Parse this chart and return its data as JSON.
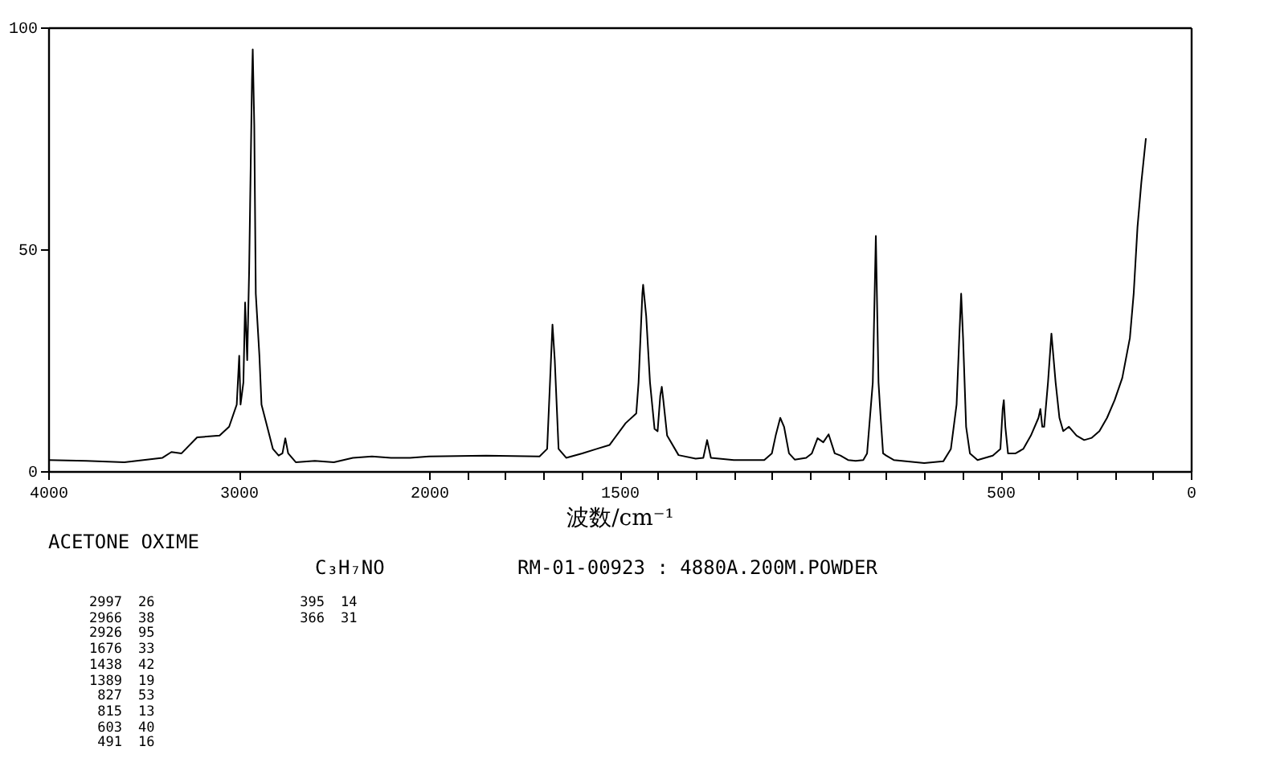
{
  "chart_data": [
    {
      "type": "line",
      "x": [
        4000,
        3800,
        3600,
        3400,
        3353,
        3300,
        3218,
        3100,
        3050,
        3010,
        2997,
        2990,
        2975,
        2966,
        2955,
        2945,
        2930,
        2926,
        2918,
        2910,
        2891,
        2880,
        2850,
        2820,
        2790,
        2770,
        2755,
        2740,
        2700,
        2600,
        2500,
        2400,
        2300,
        2200,
        2100,
        2000
      ],
      "values": [
        2.5,
        2.3,
        2,
        3,
        4.3,
        4,
        7.6,
        8,
        10,
        15,
        26,
        15,
        20,
        38,
        25,
        45,
        88,
        95,
        78,
        40,
        26,
        15,
        10,
        5,
        3.5,
        4,
        7.4,
        4,
        2,
        2.3,
        2,
        3,
        3.3,
        3,
        3,
        3.3
      ],
      "color": "#000000",
      "xlim": [
        4000,
        2000
      ],
      "xticks": [
        4000,
        3000,
        2000
      ],
      "ylim": [
        0,
        100
      ],
      "yticks": [
        0,
        50,
        100
      ],
      "annotations": [
        "ACETONE OXIME",
        "C₃H₇NO",
        "RM-01-00923 : 4880A.200M.POWDER",
        "2997 26",
        "2966 38",
        "2926 95",
        "1676 33",
        "1438 42",
        "1389 19",
        "827 53",
        "815 13",
        "603 40",
        "491 16",
        "395 14",
        "366 31"
      ]
    },
    {
      "type": "line",
      "xlabel": "波数/cm⁻¹",
      "tick_labels": "x",
      "x": [
        2000,
        1850,
        1710,
        1690,
        1680,
        1676,
        1670,
        1660,
        1640,
        1598,
        1560,
        1526,
        1484,
        1456,
        1450,
        1440,
        1438,
        1430,
        1420,
        1408,
        1400,
        1393,
        1389,
        1385,
        1375,
        1345,
        1300,
        1280,
        1270,
        1260,
        1200,
        1120,
        1100,
        1090,
        1078,
        1068,
        1055,
        1040,
        1010,
        995,
        980,
        965,
        951,
        935,
        920,
        900,
        880,
        860,
        850,
        835,
        827,
        820,
        815,
        808,
        800,
        780,
        700,
        650,
        630,
        615,
        608,
        603,
        598,
        590,
        580,
        560,
        540,
        520,
        500,
        494,
        491,
        487,
        480,
        460,
        440,
        420,
        400,
        395,
        390,
        385,
        375,
        366,
        355,
        345,
        335,
        320,
        310,
        300,
        280,
        260,
        240,
        220,
        200,
        180,
        160,
        150,
        140,
        130,
        118
      ],
      "values": [
        3.3,
        3.5,
        3.3,
        5,
        25,
        33,
        25,
        5,
        3,
        4,
        5,
        5.9,
        10.8,
        13,
        20,
        40,
        42,
        35,
        20,
        9.5,
        9,
        17,
        19,
        16,
        8,
        3.6,
        2.8,
        3,
        7,
        3,
        2.5,
        2.5,
        4,
        8,
        12,
        10,
        4,
        2.6,
        3,
        4,
        7.4,
        6.5,
        8.3,
        4,
        3.5,
        2.5,
        2.3,
        2.5,
        4,
        20,
        53,
        20,
        13,
        4,
        3.5,
        2.5,
        1.8,
        2.2,
        5,
        15,
        30,
        40,
        30,
        10,
        4,
        2.5,
        3,
        3.5,
        5,
        14,
        16,
        10,
        4,
        4,
        5,
        8,
        12,
        14,
        10,
        10,
        20,
        31,
        20,
        12,
        9,
        10,
        9,
        8,
        7,
        7.5,
        9,
        12,
        16,
        21,
        30,
        40,
        55,
        65,
        75
      ],
      "color": "#000000",
      "xlim": [
        2000,
        0
      ],
      "xticks": [
        {
          "value": 1900,
          "label": null
        },
        {
          "value": 1800,
          "label": null
        },
        {
          "value": 1700,
          "label": null
        },
        {
          "value": 1600,
          "label": null
        },
        1500,
        {
          "value": 1400,
          "label": null
        },
        {
          "value": 1300,
          "label": null
        },
        {
          "value": 1200,
          "label": null
        },
        {
          "value": 1100,
          "label": null
        },
        {
          "value": 1000,
          "label": null
        },
        {
          "value": 900,
          "label": null
        },
        {
          "value": 800,
          "label": null
        },
        {
          "value": 700,
          "label": null
        },
        {
          "value": 600,
          "label": null
        },
        500,
        {
          "value": 400,
          "label": null
        },
        {
          "value": 300,
          "label": null
        },
        {
          "value": 200,
          "label": null
        },
        {
          "value": 100,
          "label": null
        },
        0
      ],
      "ylim": [
        0,
        100
      ]
    }
  ]
}
